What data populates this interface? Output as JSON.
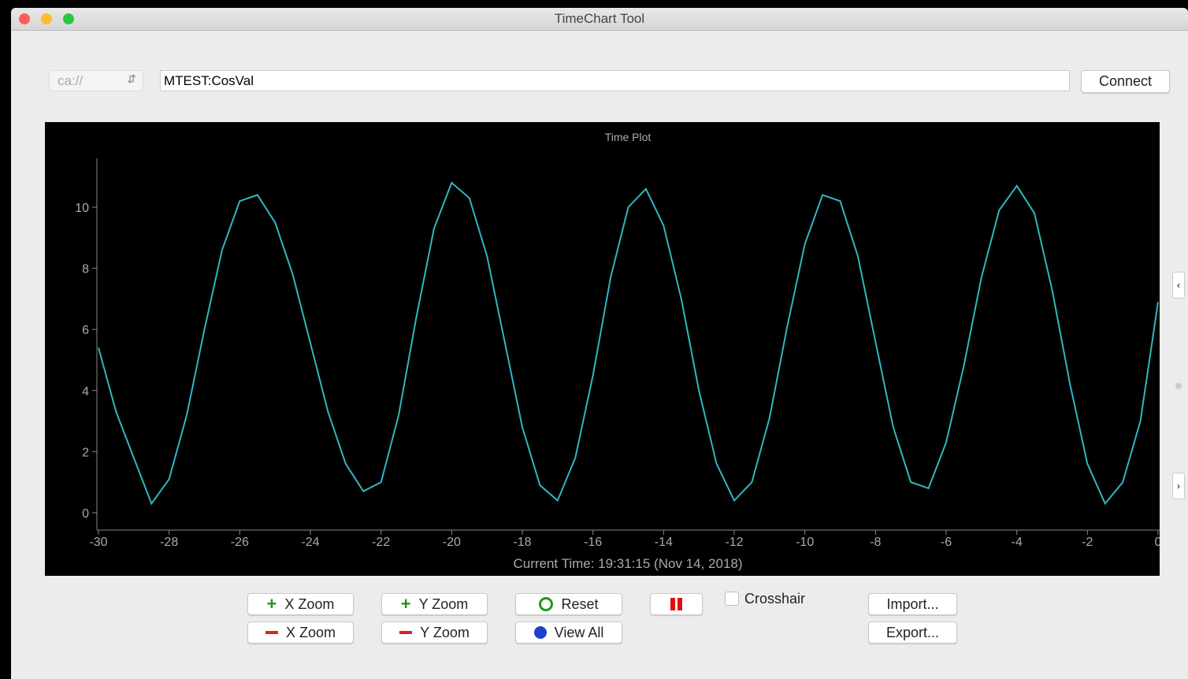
{
  "window": {
    "title": "TimeChart Tool"
  },
  "toolbar": {
    "protocol": "ca://",
    "channel": "MTEST:CosVal",
    "connect": "Connect"
  },
  "chart_data": {
    "type": "line",
    "title": "Time Plot",
    "x_label": "Current Time: 19:31:15 (Nov 14, 2018)",
    "x": [
      -30,
      -29.5,
      -29,
      -28.5,
      -28,
      -27.5,
      -27,
      -26.5,
      -26,
      -25.5,
      -25,
      -24.5,
      -24,
      -23.5,
      -23,
      -22.5,
      -22,
      -21.5,
      -21,
      -20.5,
      -20,
      -19.5,
      -19,
      -18.5,
      -18,
      -17.5,
      -17,
      -16.5,
      -16,
      -15.5,
      -15,
      -14.5,
      -14,
      -13.5,
      -13,
      -12.5,
      -12,
      -11.5,
      -11,
      -10.5,
      -10,
      -9.5,
      -9,
      -8.5,
      -8,
      -7.5,
      -7,
      -6.5,
      -6,
      -5.5,
      -5,
      -4.5,
      -4,
      -3.5,
      -3,
      -2.5,
      -2,
      -1.5,
      -1,
      -0.5,
      0
    ],
    "values": [
      5.4,
      3.3,
      1.8,
      0.3,
      1.1,
      3.2,
      6.0,
      8.6,
      10.2,
      10.4,
      9.5,
      7.8,
      5.55,
      3.3,
      1.6,
      0.7,
      1.0,
      3.2,
      6.4,
      9.3,
      10.8,
      10.3,
      8.4,
      5.6,
      2.8,
      0.9,
      0.4,
      1.8,
      4.5,
      7.7,
      10.0,
      10.6,
      9.4,
      7.0,
      4.0,
      1.6,
      0.4,
      1.0,
      3.1,
      6.1,
      8.8,
      10.4,
      10.2,
      8.4,
      5.6,
      2.8,
      1.0,
      0.8,
      2.3,
      4.8,
      7.7,
      9.9,
      10.7,
      9.8,
      7.3,
      4.25,
      1.6,
      0.3,
      1.0,
      3.0,
      6.9
    ],
    "color": "#2fb8c0",
    "xlim": [
      -30,
      0
    ],
    "xticks": [
      -30,
      -28,
      -26,
      -24,
      -22,
      -20,
      -18,
      -16,
      -14,
      -12,
      -10,
      -8,
      -6,
      -4,
      -2,
      0
    ],
    "ylim": [
      -0.57,
      11.6
    ],
    "yticks": [
      0,
      2,
      4,
      6,
      8,
      10
    ]
  },
  "controls": {
    "x_zoom_in": "X Zoom",
    "x_zoom_out": "X Zoom",
    "y_zoom_in": "Y Zoom",
    "y_zoom_out": "Y Zoom",
    "reset": "Reset",
    "view_all": "View All",
    "crosshair": "Crosshair",
    "import": "Import...",
    "export": "Export..."
  }
}
